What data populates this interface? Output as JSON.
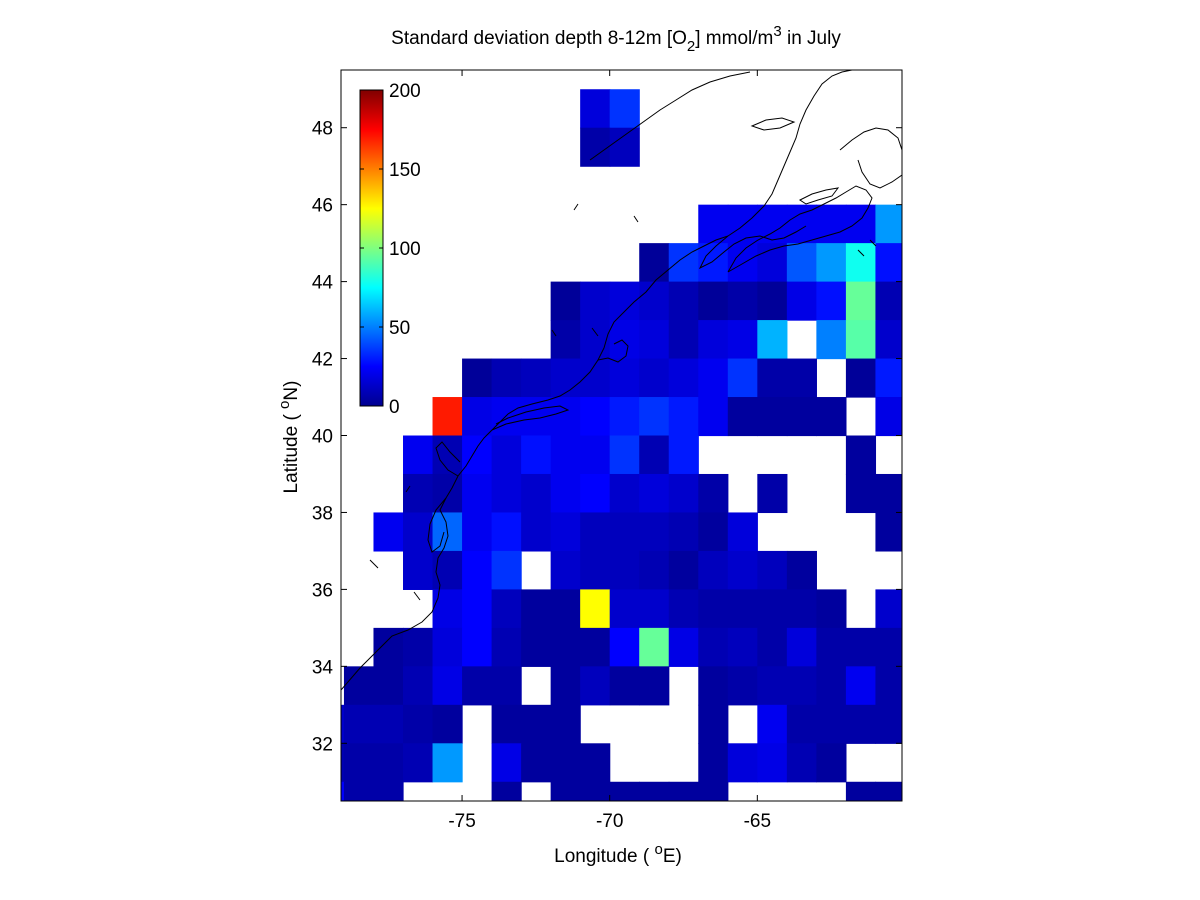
{
  "chart_data": {
    "type": "heatmap",
    "title": {
      "main": "Standard deviation depth 8-12m [O",
      "sub": "2",
      "unit_pre": "] mmol/m",
      "sup": "3",
      "suffix": " in July"
    },
    "xlabel": {
      "pre": "Longitude ( ",
      "sup": "o",
      "post": "E)"
    },
    "ylabel": {
      "pre": "Latitude ( ",
      "sup": "o",
      "post": "N)"
    },
    "x_ticks": [
      {
        "value": -75,
        "label": "-75"
      },
      {
        "value": -70,
        "label": "-70"
      },
      {
        "value": -65,
        "label": "-65"
      }
    ],
    "y_ticks": [
      {
        "value": 32,
        "label": "32"
      },
      {
        "value": 34,
        "label": "34"
      },
      {
        "value": 36,
        "label": "36"
      },
      {
        "value": 38,
        "label": "38"
      },
      {
        "value": 40,
        "label": "40"
      },
      {
        "value": 42,
        "label": "42"
      },
      {
        "value": 44,
        "label": "44"
      },
      {
        "value": 46,
        "label": "46"
      },
      {
        "value": 48,
        "label": "48"
      }
    ],
    "xlim": [
      -79.1,
      -60.1
    ],
    "ylim": [
      30.5,
      49.5
    ],
    "grid": false,
    "cell_size_deg": 1,
    "colorbar": {
      "colormap": "jet",
      "clim": [
        0,
        200
      ],
      "ticks": [
        {
          "value": 0,
          "label": "0"
        },
        {
          "value": 50,
          "label": "50"
        },
        {
          "value": 100,
          "label": "100"
        },
        {
          "value": 150,
          "label": "150"
        },
        {
          "value": 200,
          "label": "200"
        }
      ],
      "placement": "upper-left inside axes"
    },
    "cells": [
      [
        -70.5,
        48.5,
        18
      ],
      [
        -69.5,
        48.5,
        35
      ],
      [
        -70.5,
        47.5,
        8
      ],
      [
        -69.5,
        47.5,
        12
      ],
      [
        -66.5,
        45.5,
        22
      ],
      [
        -65.5,
        45.5,
        22
      ],
      [
        -64.5,
        45.5,
        22
      ],
      [
        -63.5,
        45.5,
        22
      ],
      [
        -62.5,
        45.5,
        22
      ],
      [
        -61.5,
        45.5,
        22
      ],
      [
        -60.5,
        45.5,
        55
      ],
      [
        -68.5,
        44.5,
        5
      ],
      [
        -67.5,
        44.5,
        35
      ],
      [
        -66.5,
        44.5,
        30
      ],
      [
        -65.5,
        44.5,
        22
      ],
      [
        -64.5,
        44.5,
        18
      ],
      [
        -63.5,
        44.5,
        42
      ],
      [
        -62.5,
        44.5,
        55
      ],
      [
        -61.5,
        44.5,
        78
      ],
      [
        -60.5,
        44.5,
        28
      ],
      [
        -71.5,
        43.5,
        5
      ],
      [
        -70.5,
        43.5,
        15
      ],
      [
        -69.5,
        43.5,
        18
      ],
      [
        -68.5,
        43.5,
        15
      ],
      [
        -67.5,
        43.5,
        10
      ],
      [
        -66.5,
        43.5,
        5
      ],
      [
        -65.5,
        43.5,
        8
      ],
      [
        -64.5,
        43.5,
        5
      ],
      [
        -63.5,
        43.5,
        20
      ],
      [
        -62.5,
        43.5,
        28
      ],
      [
        -61.5,
        43.5,
        95
      ],
      [
        -60.5,
        43.5,
        10
      ],
      [
        -71.5,
        42.5,
        8
      ],
      [
        -70.5,
        42.5,
        15
      ],
      [
        -69.5,
        42.5,
        20
      ],
      [
        -68.5,
        42.5,
        18
      ],
      [
        -67.5,
        42.5,
        10
      ],
      [
        -66.5,
        42.5,
        18
      ],
      [
        -65.5,
        42.5,
        20
      ],
      [
        -64.5,
        42.5,
        60
      ],
      [
        -62.5,
        42.5,
        50
      ],
      [
        -61.5,
        42.5,
        92
      ],
      [
        -60.5,
        42.5,
        15
      ],
      [
        -74.5,
        41.5,
        5
      ],
      [
        -73.5,
        41.5,
        10
      ],
      [
        -72.5,
        41.5,
        12
      ],
      [
        -71.5,
        41.5,
        15
      ],
      [
        -70.5,
        41.5,
        15
      ],
      [
        -69.5,
        41.5,
        18
      ],
      [
        -68.5,
        41.5,
        15
      ],
      [
        -67.5,
        41.5,
        18
      ],
      [
        -66.5,
        41.5,
        22
      ],
      [
        -65.5,
        41.5,
        35
      ],
      [
        -64.5,
        41.5,
        8
      ],
      [
        -63.5,
        41.5,
        8
      ],
      [
        -61.5,
        41.5,
        5
      ],
      [
        -60.5,
        41.5,
        30
      ],
      [
        -75.5,
        40.5,
        170
      ],
      [
        -74.5,
        40.5,
        20
      ],
      [
        -73.5,
        40.5,
        22
      ],
      [
        -72.5,
        40.5,
        22
      ],
      [
        -71.5,
        40.5,
        22
      ],
      [
        -70.5,
        40.5,
        25
      ],
      [
        -69.5,
        40.5,
        30
      ],
      [
        -68.5,
        40.5,
        35
      ],
      [
        -67.5,
        40.5,
        30
      ],
      [
        -66.5,
        40.5,
        22
      ],
      [
        -65.5,
        40.5,
        6
      ],
      [
        -64.5,
        40.5,
        6
      ],
      [
        -63.5,
        40.5,
        6
      ],
      [
        -62.5,
        40.5,
        6
      ],
      [
        -60.5,
        40.5,
        20
      ],
      [
        -76.5,
        39.5,
        22
      ],
      [
        -75.5,
        39.5,
        10
      ],
      [
        -74.5,
        39.5,
        25
      ],
      [
        -73.5,
        39.5,
        18
      ],
      [
        -72.5,
        39.5,
        28
      ],
      [
        -71.5,
        39.5,
        22
      ],
      [
        -70.5,
        39.5,
        22
      ],
      [
        -69.5,
        39.5,
        35
      ],
      [
        -68.5,
        39.5,
        10
      ],
      [
        -67.5,
        39.5,
        30
      ],
      [
        -61.5,
        39.5,
        6
      ],
      [
        -76.5,
        38.5,
        10
      ],
      [
        -75.5,
        38.5,
        8
      ],
      [
        -74.5,
        38.5,
        22
      ],
      [
        -73.5,
        38.5,
        18
      ],
      [
        -72.5,
        38.5,
        15
      ],
      [
        -71.5,
        38.5,
        22
      ],
      [
        -70.5,
        38.5,
        25
      ],
      [
        -69.5,
        38.5,
        15
      ],
      [
        -68.5,
        38.5,
        18
      ],
      [
        -67.5,
        38.5,
        15
      ],
      [
        -66.5,
        38.5,
        8
      ],
      [
        -64.5,
        38.5,
        8
      ],
      [
        -61.5,
        38.5,
        6
      ],
      [
        -60.5,
        38.5,
        6
      ],
      [
        -77.5,
        37.5,
        22
      ],
      [
        -76.5,
        37.5,
        15
      ],
      [
        -75.5,
        37.5,
        45
      ],
      [
        -74.5,
        37.5,
        22
      ],
      [
        -73.5,
        37.5,
        28
      ],
      [
        -72.5,
        37.5,
        15
      ],
      [
        -71.5,
        37.5,
        18
      ],
      [
        -70.5,
        37.5,
        12
      ],
      [
        -69.5,
        37.5,
        12
      ],
      [
        -68.5,
        37.5,
        12
      ],
      [
        -67.5,
        37.5,
        10
      ],
      [
        -66.5,
        37.5,
        6
      ],
      [
        -65.5,
        37.5,
        18
      ],
      [
        -60.5,
        37.5,
        6
      ],
      [
        -76.5,
        36.5,
        15
      ],
      [
        -75.5,
        36.5,
        10
      ],
      [
        -74.5,
        36.5,
        25
      ],
      [
        -73.5,
        36.5,
        35
      ],
      [
        -71.5,
        36.5,
        15
      ],
      [
        -70.5,
        36.5,
        12
      ],
      [
        -69.5,
        36.5,
        12
      ],
      [
        -68.5,
        36.5,
        10
      ],
      [
        -67.5,
        36.5,
        6
      ],
      [
        -66.5,
        36.5,
        12
      ],
      [
        -65.5,
        36.5,
        15
      ],
      [
        -64.5,
        36.5,
        12
      ],
      [
        -63.5,
        36.5,
        6
      ],
      [
        -75.5,
        35.5,
        20
      ],
      [
        -74.5,
        35.5,
        25
      ],
      [
        -73.5,
        35.5,
        12
      ],
      [
        -72.5,
        35.5,
        6
      ],
      [
        -71.5,
        35.5,
        6
      ],
      [
        -70.5,
        35.5,
        125
      ],
      [
        -69.5,
        35.5,
        15
      ],
      [
        -68.5,
        35.5,
        15
      ],
      [
        -67.5,
        35.5,
        10
      ],
      [
        -66.5,
        35.5,
        8
      ],
      [
        -65.5,
        35.5,
        8
      ],
      [
        -64.5,
        35.5,
        8
      ],
      [
        -63.5,
        35.5,
        8
      ],
      [
        -62.5,
        35.5,
        6
      ],
      [
        -60.5,
        35.5,
        15
      ],
      [
        -77.5,
        34.5,
        6
      ],
      [
        -76.5,
        34.5,
        8
      ],
      [
        -75.5,
        34.5,
        18
      ],
      [
        -74.5,
        34.5,
        25
      ],
      [
        -73.5,
        34.5,
        10
      ],
      [
        -72.5,
        34.5,
        6
      ],
      [
        -71.5,
        34.5,
        6
      ],
      [
        -70.5,
        34.5,
        6
      ],
      [
        -69.5,
        34.5,
        25
      ],
      [
        -68.5,
        34.5,
        95
      ],
      [
        -67.5,
        34.5,
        20
      ],
      [
        -66.5,
        34.5,
        10
      ],
      [
        -65.5,
        34.5,
        12
      ],
      [
        -64.5,
        34.5,
        8
      ],
      [
        -63.5,
        34.5,
        18
      ],
      [
        -62.5,
        34.5,
        8
      ],
      [
        -61.5,
        34.5,
        8
      ],
      [
        -60.5,
        34.5,
        8
      ],
      [
        -78.5,
        33.5,
        6
      ],
      [
        -77.5,
        33.5,
        6
      ],
      [
        -76.5,
        33.5,
        10
      ],
      [
        -75.5,
        33.5,
        20
      ],
      [
        -74.5,
        33.5,
        8
      ],
      [
        -73.5,
        33.5,
        8
      ],
      [
        -71.5,
        33.5,
        6
      ],
      [
        -70.5,
        33.5,
        12
      ],
      [
        -69.5,
        33.5,
        6
      ],
      [
        -68.5,
        33.5,
        6
      ],
      [
        -66.5,
        33.5,
        6
      ],
      [
        -65.5,
        33.5,
        8
      ],
      [
        -64.5,
        33.5,
        10
      ],
      [
        -63.5,
        33.5,
        10
      ],
      [
        -62.5,
        33.5,
        8
      ],
      [
        -61.5,
        33.5,
        22
      ],
      [
        -60.5,
        33.5,
        8
      ],
      [
        -79.5,
        32.5,
        15
      ],
      [
        -78.5,
        32.5,
        10
      ],
      [
        -77.5,
        32.5,
        10
      ],
      [
        -76.5,
        32.5,
        8
      ],
      [
        -75.5,
        32.5,
        6
      ],
      [
        -73.5,
        32.5,
        6
      ],
      [
        -72.5,
        32.5,
        6
      ],
      [
        -71.5,
        32.5,
        6
      ],
      [
        -66.5,
        32.5,
        6
      ],
      [
        -64.5,
        32.5,
        22
      ],
      [
        -63.5,
        32.5,
        8
      ],
      [
        -62.5,
        32.5,
        8
      ],
      [
        -61.5,
        32.5,
        8
      ],
      [
        -60.5,
        32.5,
        8
      ],
      [
        -79.5,
        31.5,
        10
      ],
      [
        -78.5,
        31.5,
        8
      ],
      [
        -77.5,
        31.5,
        8
      ],
      [
        -76.5,
        31.5,
        10
      ],
      [
        -75.5,
        31.5,
        55
      ],
      [
        -73.5,
        31.5,
        20
      ],
      [
        -72.5,
        31.5,
        6
      ],
      [
        -71.5,
        31.5,
        6
      ],
      [
        -70.5,
        31.5,
        6
      ],
      [
        -66.5,
        31.5,
        6
      ],
      [
        -65.5,
        31.5,
        18
      ],
      [
        -64.5,
        31.5,
        20
      ],
      [
        -63.5,
        31.5,
        10
      ],
      [
        -62.5,
        31.5,
        6
      ],
      [
        -79.5,
        30.5,
        25
      ],
      [
        -78.5,
        30.5,
        8
      ],
      [
        -77.5,
        30.5,
        8
      ],
      [
        -73.5,
        30.5,
        6
      ],
      [
        -71.5,
        30.5,
        6
      ],
      [
        -70.5,
        30.5,
        6
      ],
      [
        -69.5,
        30.5,
        6
      ],
      [
        -68.5,
        30.5,
        6
      ],
      [
        -67.5,
        30.5,
        6
      ],
      [
        -66.5,
        30.5,
        6
      ],
      [
        -61.5,
        30.5,
        6
      ],
      [
        -60.5,
        30.5,
        6
      ]
    ]
  }
}
